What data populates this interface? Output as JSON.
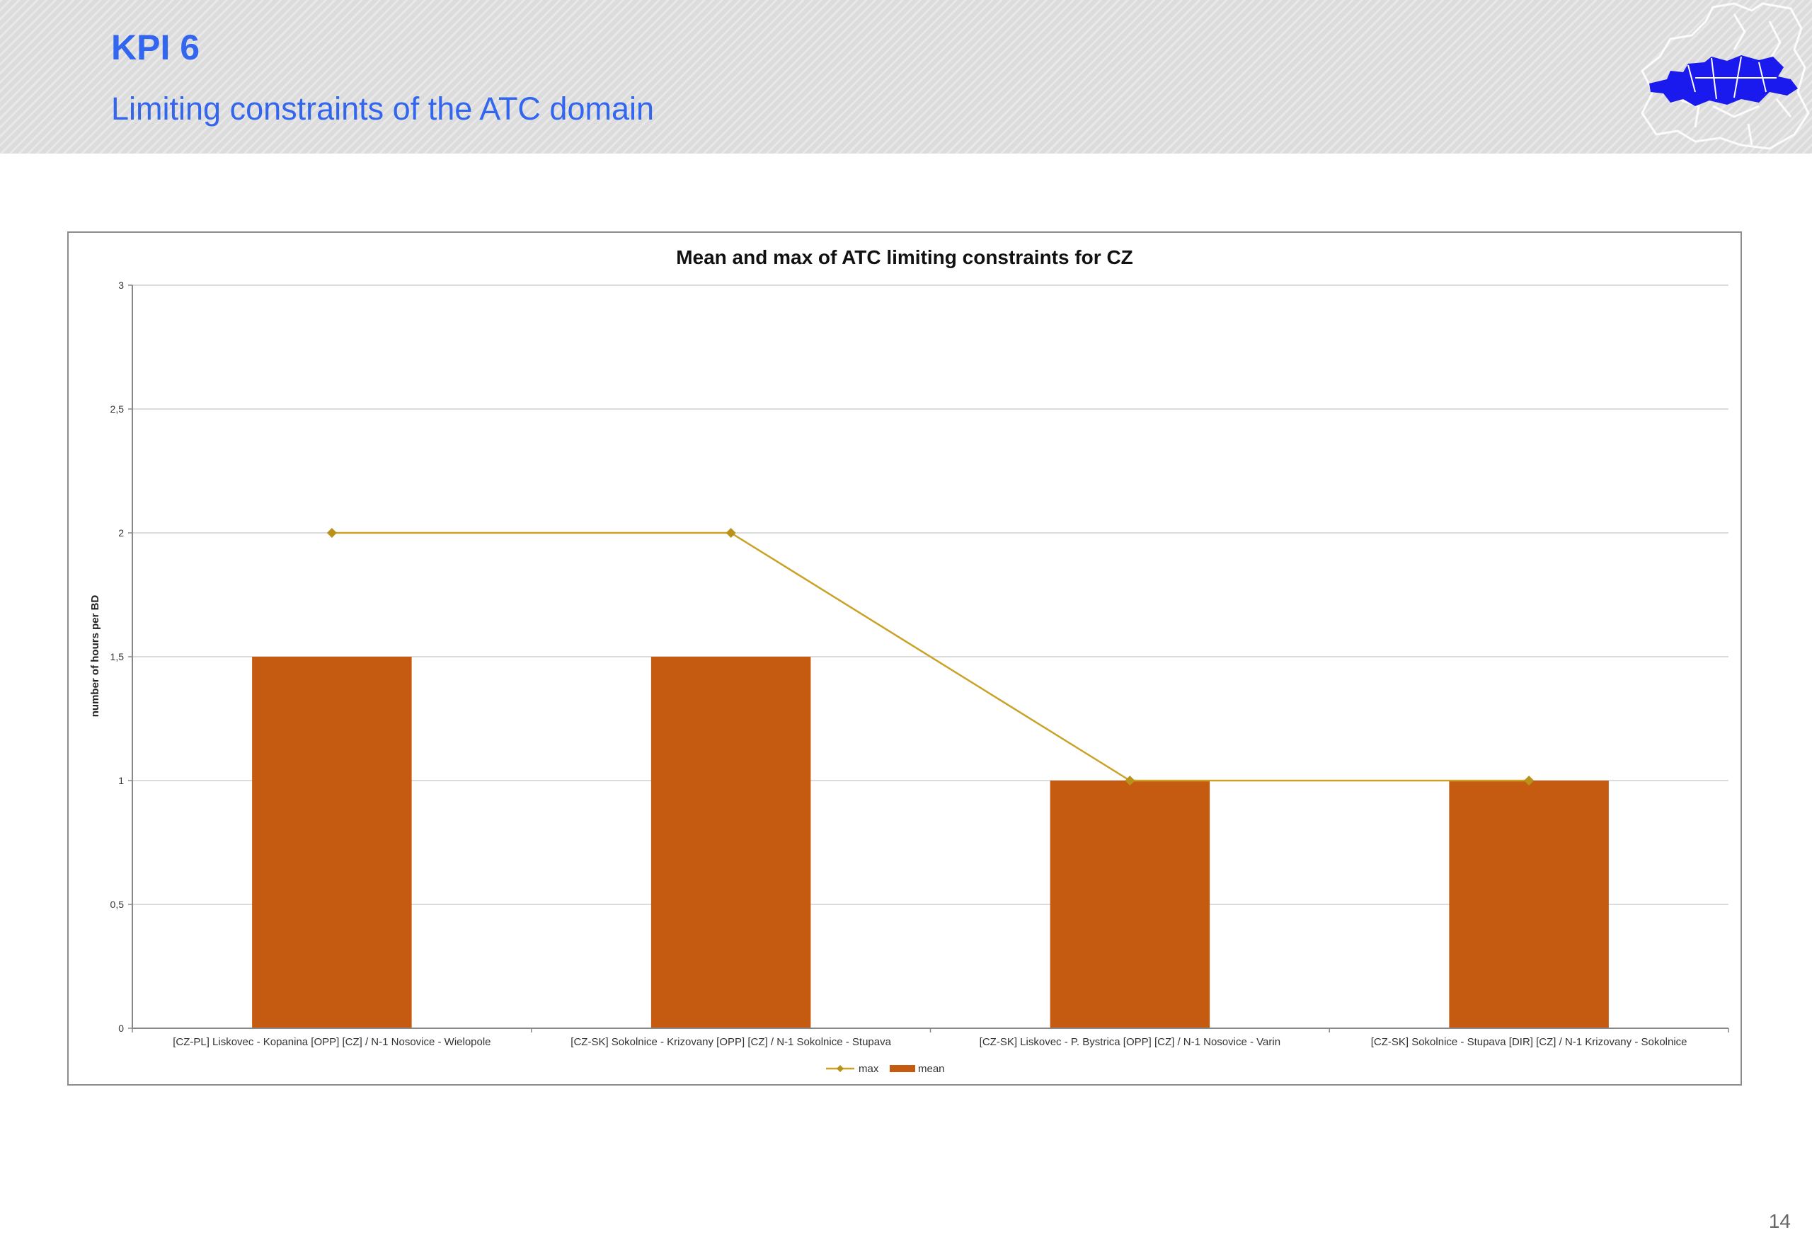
{
  "header": {
    "title": "KPI 6",
    "subtitle": "Limiting constraints of the ATC domain"
  },
  "logo": {
    "icon": "europe-map-logo",
    "color": "#1a1aee"
  },
  "page_number": "14",
  "colors": {
    "bar": "#c55a11",
    "line": "#c9a227",
    "accent_text": "#3366ee"
  },
  "chart_data": {
    "type": "bar",
    "title": "Mean and max of ATC limiting constraints for CZ",
    "xlabel": "",
    "ylabel": "number of hours per BD",
    "ylim": [
      0,
      3
    ],
    "yticks": [
      "0",
      "0,5",
      "1",
      "1,5",
      "2",
      "2,5",
      "3"
    ],
    "ytick_values": [
      0,
      0.5,
      1,
      1.5,
      2,
      2.5,
      3
    ],
    "grid": true,
    "legend_position": "bottom",
    "categories": [
      "[CZ-PL] Liskovec - Kopanina [OPP] [CZ] / N-1 Nosovice - Wielopole",
      "[CZ-SK] Sokolnice - Krizovany [OPP] [CZ] / N-1 Sokolnice - Stupava",
      "[CZ-SK] Liskovec - P. Bystrica [OPP] [CZ] / N-1 Nosovice - Varin",
      "[CZ-SK] Sokolnice - Stupava [DIR] [CZ] / N-1 Krizovany - Sokolnice"
    ],
    "series": [
      {
        "name": "max",
        "kind": "line",
        "marker": "diamond",
        "color": "#c9a227",
        "values": [
          2,
          2,
          1,
          1
        ]
      },
      {
        "name": "mean",
        "kind": "bar",
        "color": "#c55a11",
        "values": [
          1.5,
          1.5,
          1,
          1
        ]
      }
    ]
  }
}
